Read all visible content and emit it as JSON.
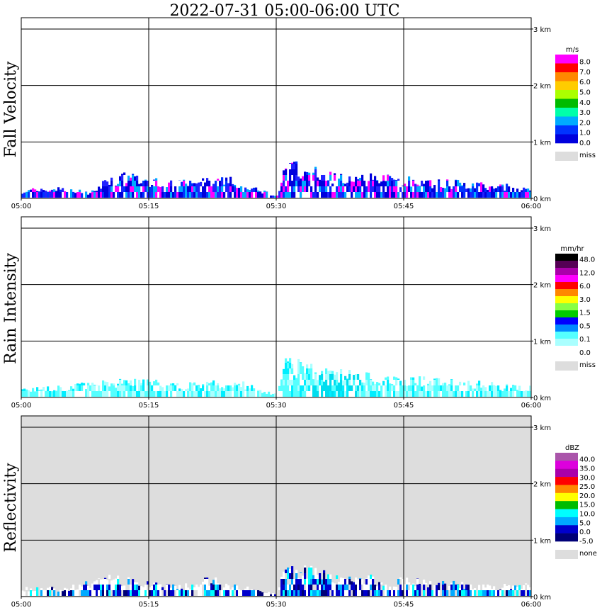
{
  "title": "2022-07-31   05:00-06:00 UTC",
  "height_ticks": [
    "0 km",
    "1 km",
    "2 km",
    "3 km"
  ],
  "time_ticks": [
    "05:00",
    "05:15",
    "05:30",
    "05:45",
    "06:00"
  ],
  "chart_data": [
    {
      "type": "heatmap",
      "ylabel": "Fall Velocity",
      "xlabel": "",
      "xlim": [
        "05:00",
        "06:00"
      ],
      "ylim_km": [
        0,
        3.2
      ],
      "grid": true,
      "background": "#ffffff",
      "colorbar": {
        "unit": "m/s",
        "labels": [
          "8.0",
          "7.0",
          "6.0",
          "5.0",
          "4.0",
          "3.0",
          "2.0",
          "1.0",
          "0.0"
        ],
        "colors": [
          "#ff00ff",
          "#ff0000",
          "#ff8800",
          "#ffcc00",
          "#aaff00",
          "#00bb00",
          "#00ffaa",
          "#00aaff",
          "#0033ff",
          "#0000dd"
        ],
        "miss_label": "miss",
        "miss_color": "#dddddd"
      },
      "echo_top_km": [
        {
          "t": "05:00",
          "h": 0.15
        },
        {
          "t": "05:05",
          "h": 0.2
        },
        {
          "t": "05:08",
          "h": 0.1
        },
        {
          "t": "05:10",
          "h": 0.35
        },
        {
          "t": "05:12",
          "h": 0.4
        },
        {
          "t": "05:15",
          "h": 0.35
        },
        {
          "t": "05:20",
          "h": 0.3
        },
        {
          "t": "05:22",
          "h": 0.35
        },
        {
          "t": "05:25",
          "h": 0.35
        },
        {
          "t": "05:28",
          "h": 0.15
        },
        {
          "t": "05:30",
          "h": 0.05
        },
        {
          "t": "05:31",
          "h": 0.65
        },
        {
          "t": "05:33",
          "h": 0.55
        },
        {
          "t": "05:36",
          "h": 0.45
        },
        {
          "t": "05:40",
          "h": 0.4
        },
        {
          "t": "05:45",
          "h": 0.35
        },
        {
          "t": "05:50",
          "h": 0.3
        },
        {
          "t": "05:55",
          "h": 0.25
        },
        {
          "t": "06:00",
          "h": 0.2
        }
      ],
      "dominant_value": "1.0 m/s"
    },
    {
      "type": "heatmap",
      "ylabel": "Rain Intensity",
      "xlabel": "",
      "xlim": [
        "05:00",
        "06:00"
      ],
      "ylim_km": [
        0,
        3.2
      ],
      "grid": true,
      "background": "#ffffff",
      "colorbar": {
        "unit": "mm/hr",
        "labels": [
          "48.0",
          "12.0",
          "6.0",
          "3.0",
          "1.5",
          "0.5",
          "0.1",
          "0.0"
        ],
        "colors": [
          "#000000",
          "#550055",
          "#aa00aa",
          "#ff00ff",
          "#ff0000",
          "#ff8800",
          "#ffff00",
          "#88ff44",
          "#00cc00",
          "#0000ff",
          "#0088ff",
          "#55ffff",
          "#aaffff",
          "#ffffff"
        ],
        "miss_label": "miss",
        "miss_color": "#dddddd"
      },
      "echo_top_km": [
        {
          "t": "05:00",
          "h": 0.15
        },
        {
          "t": "05:05",
          "h": 0.2
        },
        {
          "t": "05:10",
          "h": 0.3
        },
        {
          "t": "05:15",
          "h": 0.3
        },
        {
          "t": "05:20",
          "h": 0.25
        },
        {
          "t": "05:25",
          "h": 0.3
        },
        {
          "t": "05:28",
          "h": 0.15
        },
        {
          "t": "05:30",
          "h": 0.05
        },
        {
          "t": "05:31",
          "h": 0.65
        },
        {
          "t": "05:35",
          "h": 0.5
        },
        {
          "t": "05:40",
          "h": 0.4
        },
        {
          "t": "05:45",
          "h": 0.35
        },
        {
          "t": "05:50",
          "h": 0.3
        },
        {
          "t": "06:00",
          "h": 0.2
        }
      ],
      "dominant_value": "0.1 mm/hr"
    },
    {
      "type": "heatmap",
      "ylabel": "Reflectivity",
      "xlabel": "",
      "xlim": [
        "05:00",
        "06:00"
      ],
      "ylim_km": [
        0,
        3.2
      ],
      "grid": true,
      "background": "#dddddd",
      "colorbar": {
        "unit": "dBZ",
        "labels": [
          "40.0",
          "35.0",
          "30.0",
          "25.0",
          "20.0",
          "15.0",
          "10.0",
          "5.0",
          "0.0",
          "-5.0"
        ],
        "colors": [
          "#aa55aa",
          "#dd00dd",
          "#aa00aa",
          "#ff0000",
          "#ff8800",
          "#ffff00",
          "#00bb00",
          "#00ffff",
          "#00aaff",
          "#0000cc",
          "#000077"
        ],
        "miss_label": "none",
        "miss_color": "#dddddd"
      },
      "echo_top_km": [
        {
          "t": "05:00",
          "h": 0.15
        },
        {
          "t": "05:05",
          "h": 0.15
        },
        {
          "t": "05:10",
          "h": 0.35
        },
        {
          "t": "05:15",
          "h": 0.25
        },
        {
          "t": "05:20",
          "h": 0.2
        },
        {
          "t": "05:22",
          "h": 0.35
        },
        {
          "t": "05:25",
          "h": 0.2
        },
        {
          "t": "05:30",
          "h": 0.05
        },
        {
          "t": "05:31",
          "h": 0.6
        },
        {
          "t": "05:35",
          "h": 0.45
        },
        {
          "t": "05:40",
          "h": 0.35
        },
        {
          "t": "05:45",
          "h": 0.3
        },
        {
          "t": "05:50",
          "h": 0.25
        },
        {
          "t": "06:00",
          "h": 0.2
        }
      ],
      "dominant_value": "5.0 dBZ"
    }
  ]
}
